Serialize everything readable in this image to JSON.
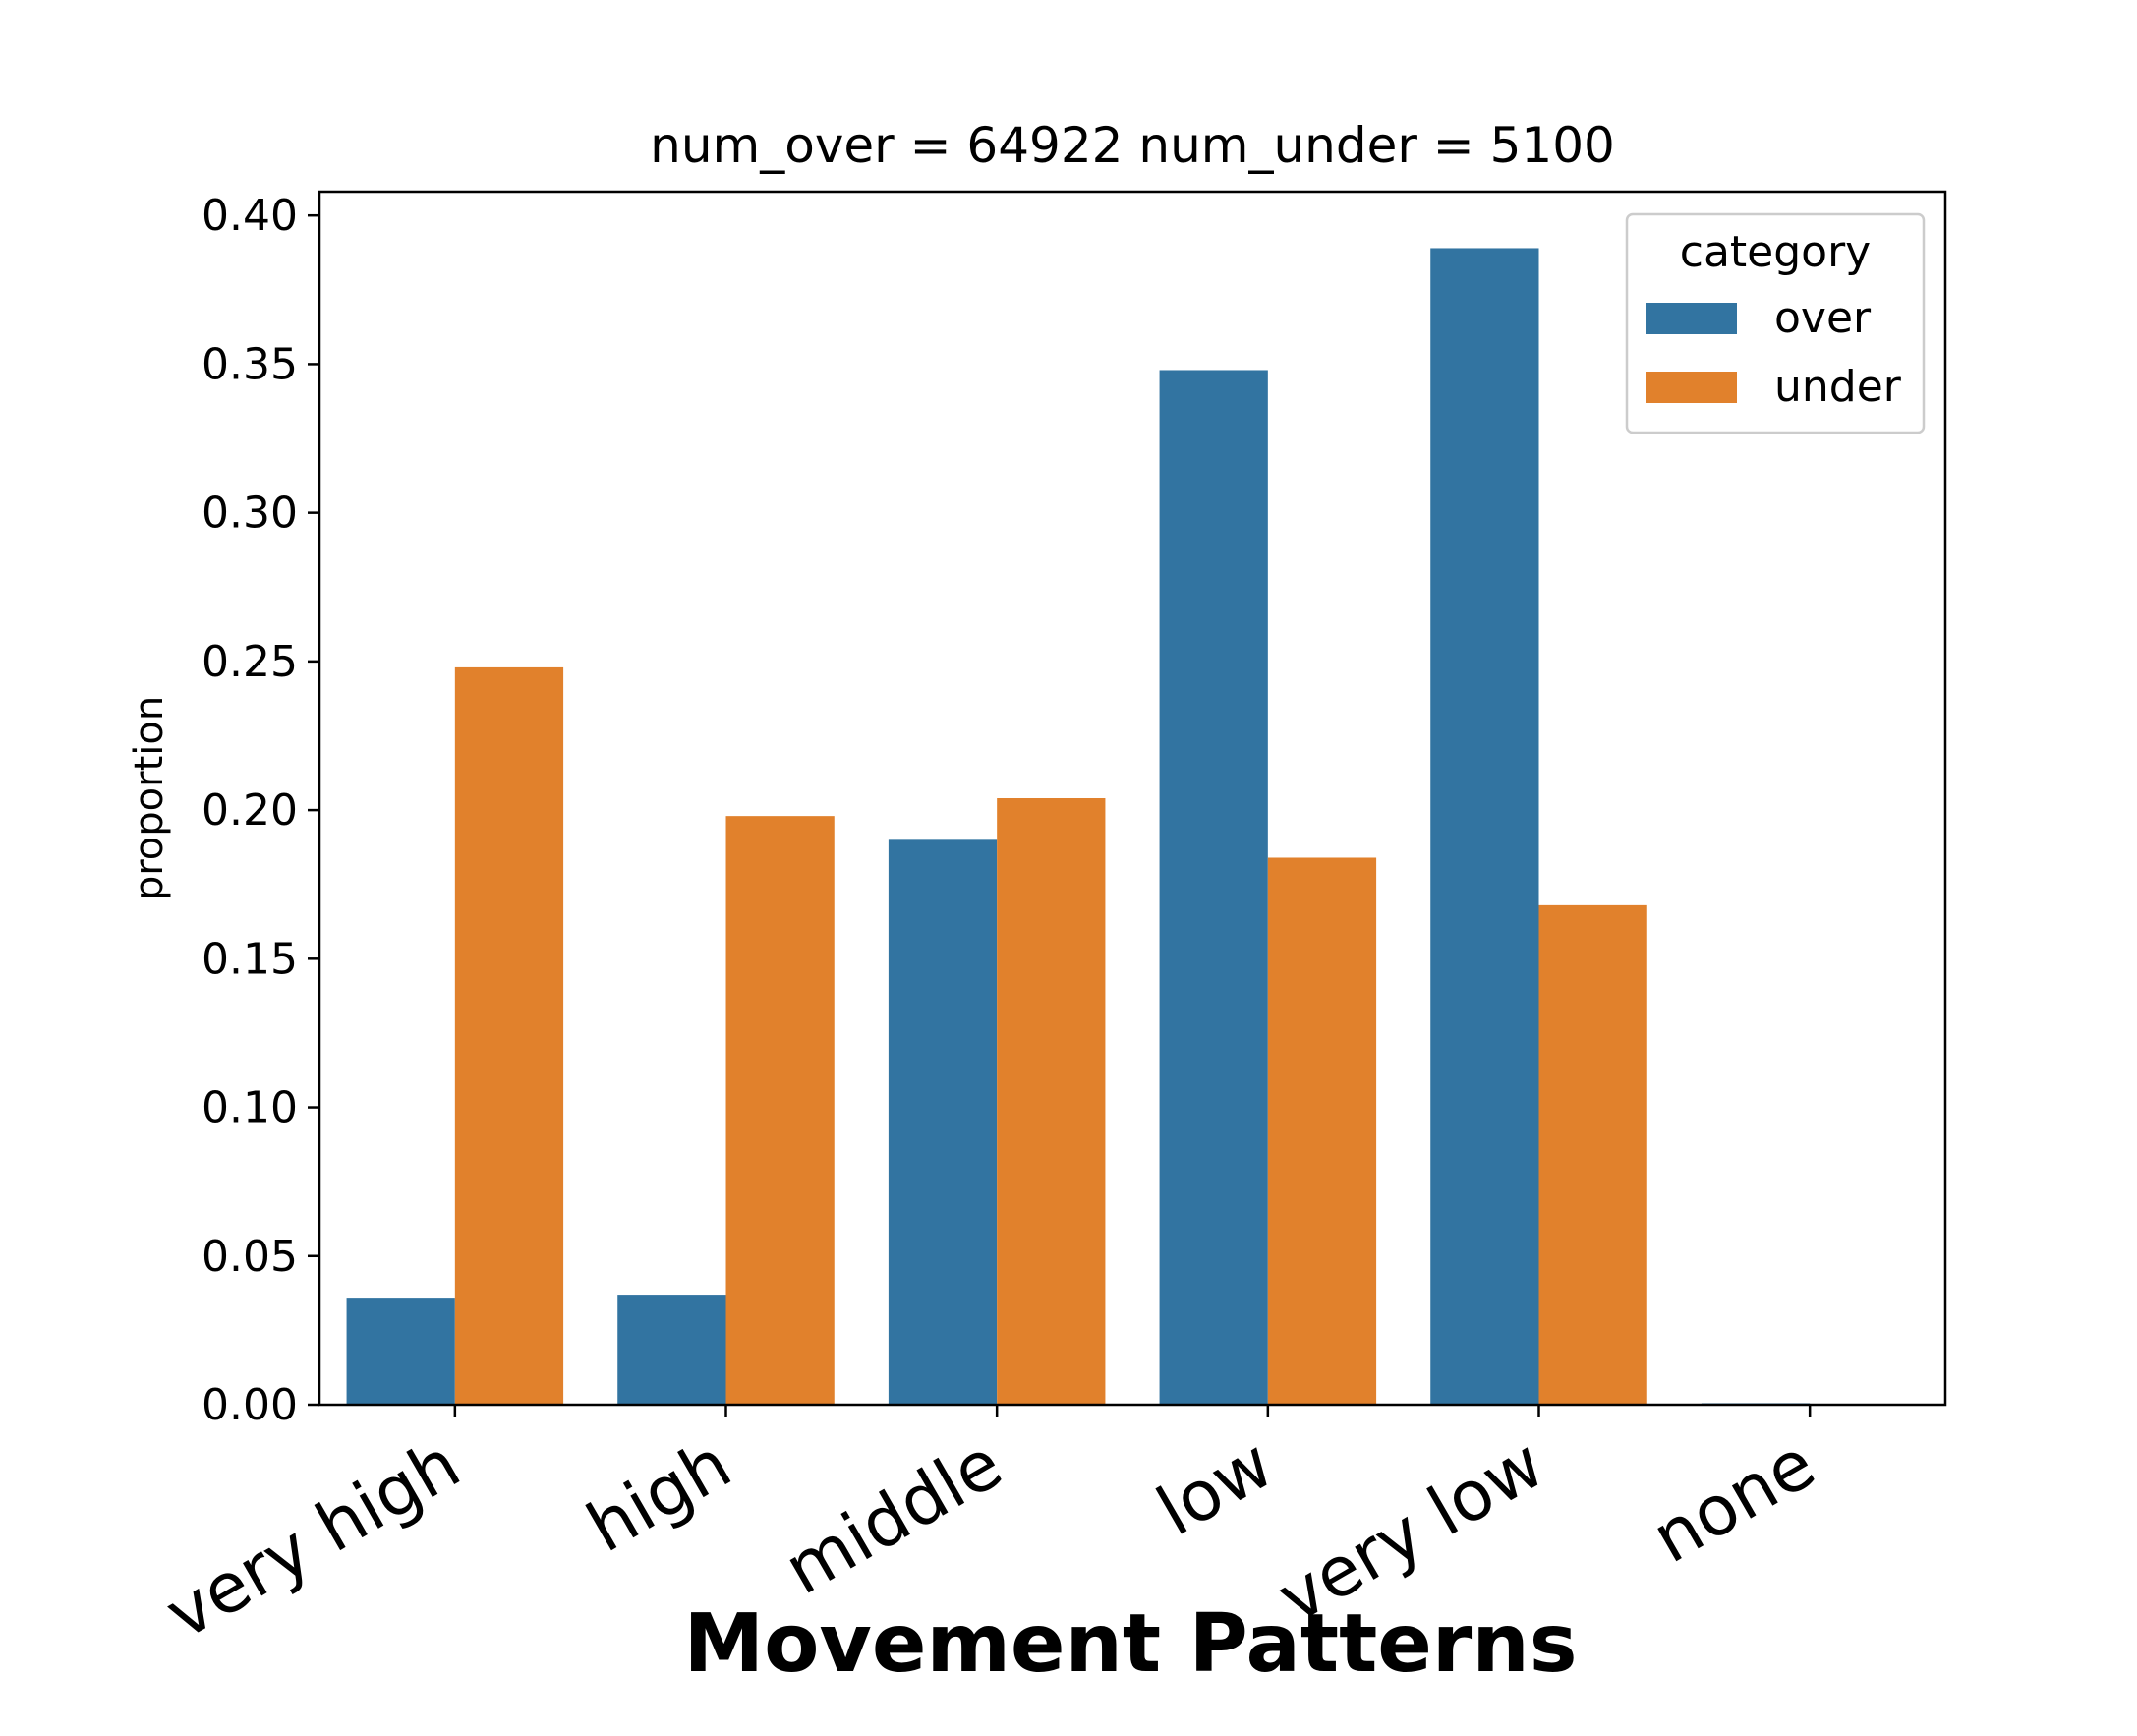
{
  "chart_data": {
    "type": "bar",
    "title": "num_over = 64922  num_under = 5100",
    "xlabel": "Movement Patterns",
    "ylabel": "proportion",
    "categories": [
      "very high",
      "high",
      "middle",
      "low",
      "very low",
      "none"
    ],
    "series": [
      {
        "name": "over",
        "color": "#3274a1",
        "values": [
          0.036,
          0.037,
          0.19,
          0.348,
          0.389,
          0.0005
        ]
      },
      {
        "name": "under",
        "color": "#e1812c",
        "values": [
          0.248,
          0.198,
          0.204,
          0.184,
          0.168,
          0.0
        ]
      }
    ],
    "ylim": [
      0,
      0.408
    ],
    "yticks": [
      "0.00",
      "0.05",
      "0.10",
      "0.15",
      "0.20",
      "0.25",
      "0.30",
      "0.35",
      "0.40"
    ],
    "legend": {
      "title": "category",
      "placement": "top-right"
    },
    "grid": false
  }
}
